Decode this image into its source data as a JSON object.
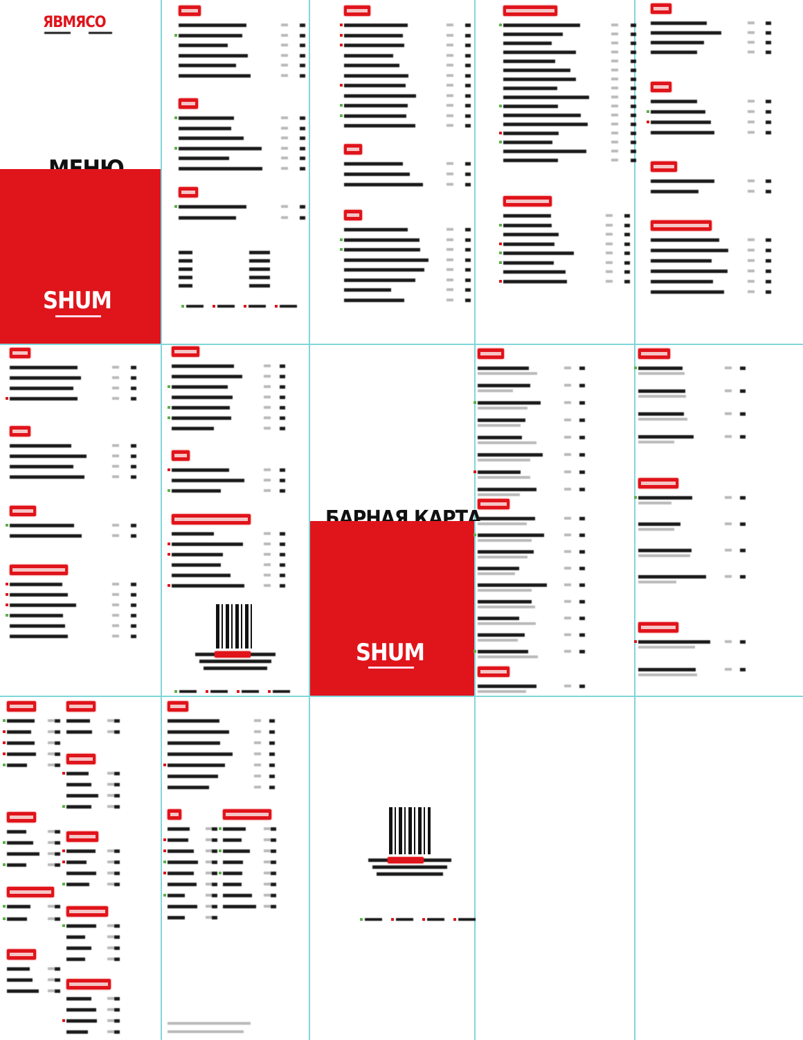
{
  "cover": {
    "logo": "ЯВМЯСО",
    "title": "МЕНЮ",
    "brand": "SHUM"
  },
  "bar_cover": {
    "title": "БАРНАЯ КАРТА",
    "brand": "SHUM"
  },
  "colors": {
    "accent": "#e0141b",
    "guide": "#7fd6dc",
    "text": "#1a1a1a"
  }
}
